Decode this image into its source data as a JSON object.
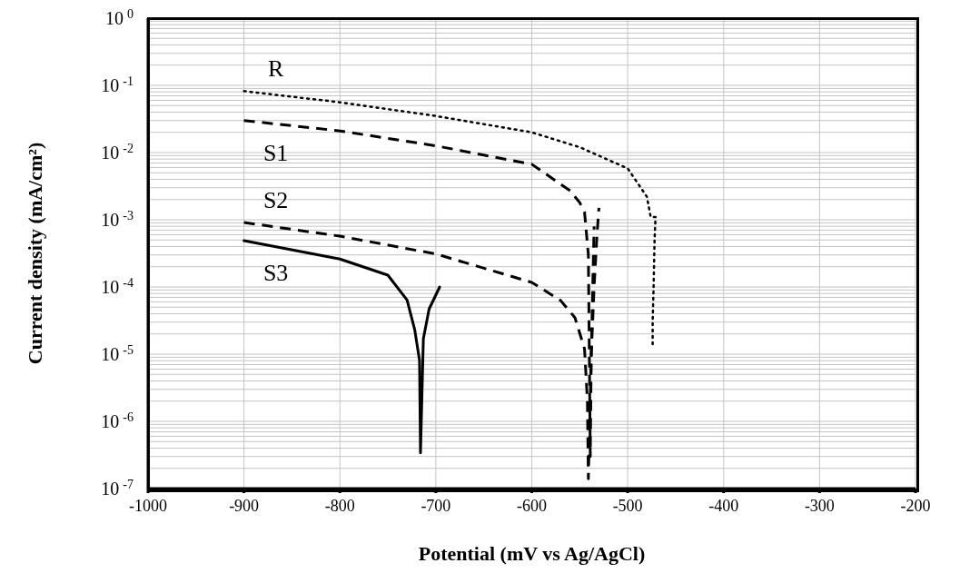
{
  "chart_data": {
    "type": "line",
    "xlabel": "Potential  (mV vs Ag/AgCl)",
    "ylabel": "Current density (mA/cm²)",
    "xlim": [
      -1000,
      -200
    ],
    "xticks": [
      -1000,
      -900,
      -800,
      -700,
      -600,
      -500,
      -400,
      -300,
      -200
    ],
    "ylim": [
      1e-07,
      1
    ],
    "log": "y",
    "grid": true,
    "legend": false,
    "marker": "none",
    "yticks": [
      {
        "value": 1e-07,
        "label": "10$^{-7}$"
      },
      {
        "value": 2e-07,
        "label": null
      },
      {
        "value": 3e-07,
        "label": null
      },
      {
        "value": 4e-07,
        "label": null
      },
      {
        "value": 5e-07,
        "label": null
      },
      {
        "value": 6e-07,
        "label": null
      },
      {
        "value": 7e-07,
        "label": null
      },
      {
        "value": 8e-07,
        "label": null
      },
      {
        "value": 9e-07,
        "label": null
      },
      {
        "value": 1e-06,
        "label": "10$^{-6}$"
      },
      {
        "value": 2e-06,
        "label": null
      },
      {
        "value": 3e-06,
        "label": null
      },
      {
        "value": 4e-06,
        "label": null
      },
      {
        "value": 5e-06,
        "label": null
      },
      {
        "value": 6e-06,
        "label": null
      },
      {
        "value": 7e-06,
        "label": null
      },
      {
        "value": 8e-06,
        "label": null
      },
      {
        "value": 9e-06,
        "label": null
      },
      {
        "value": 1e-05,
        "label": "10$^{-5}$"
      },
      {
        "value": 2e-05,
        "label": null
      },
      {
        "value": 3e-05,
        "label": null
      },
      {
        "value": 4e-05,
        "label": null
      },
      {
        "value": 5e-05,
        "label": null
      },
      {
        "value": 6e-05,
        "label": null
      },
      {
        "value": 7e-05,
        "label": null
      },
      {
        "value": 8e-05,
        "label": null
      },
      {
        "value": 9e-05,
        "label": null
      },
      {
        "value": 0.0001,
        "label": "10$^{-4}$"
      },
      {
        "value": 0.0002,
        "label": null
      },
      {
        "value": 0.0003,
        "label": null
      },
      {
        "value": 0.0004,
        "label": null
      },
      {
        "value": 0.0005,
        "label": null
      },
      {
        "value": 0.0006,
        "label": null
      },
      {
        "value": 0.0007,
        "label": null
      },
      {
        "value": 0.0008,
        "label": null
      },
      {
        "value": 0.0009,
        "label": null
      },
      {
        "value": 0.001,
        "label": "10$^{-3}$"
      },
      {
        "value": 0.002,
        "label": null
      },
      {
        "value": 0.003,
        "label": null
      },
      {
        "value": 0.004,
        "label": null
      },
      {
        "value": 0.005,
        "label": null
      },
      {
        "value": 0.006,
        "label": null
      },
      {
        "value": 0.007,
        "label": null
      },
      {
        "value": 0.008,
        "label": null
      },
      {
        "value": 0.009,
        "label": null
      },
      {
        "value": 0.01,
        "label": "10$^{-2}$"
      },
      {
        "value": 0.02,
        "label": null
      },
      {
        "value": 0.03,
        "label": null
      },
      {
        "value": 0.04,
        "label": null
      },
      {
        "value": 0.05,
        "label": null
      },
      {
        "value": 0.06,
        "label": null
      },
      {
        "value": 0.07,
        "label": null
      },
      {
        "value": 0.08,
        "label": null
      },
      {
        "value": 0.09,
        "label": null
      },
      {
        "value": 0.1,
        "label": "10$^{-1}$"
      },
      {
        "value": 0.2,
        "label": null
      },
      {
        "value": 0.3,
        "label": null
      },
      {
        "value": 0.4,
        "label": null
      },
      {
        "value": 0.5,
        "label": null
      },
      {
        "value": 0.6,
        "label": null
      },
      {
        "value": 0.7,
        "label": null
      },
      {
        "value": 0.8,
        "label": null
      },
      {
        "value": 0.9,
        "label": null
      },
      {
        "value": 1,
        "label": "10$^{0}$"
      }
    ],
    "series": [
      {
        "name": "R",
        "color": "#000000",
        "line_style": "dotted",
        "x": [
          -900,
          -800,
          -700,
          -600,
          -550,
          -500,
          -480,
          -476,
          -471,
          -472,
          -473,
          -474,
          -474
        ],
        "values": [
          0.082,
          0.056,
          0.035,
          0.02,
          0.012,
          0.0058,
          0.0022,
          0.0011,
          0.0011,
          0.0005,
          0.0001,
          3e-05,
          1.4e-05
        ]
      },
      {
        "name": "S1",
        "color": "#000000",
        "line_style": "dashed",
        "x": [
          -900,
          -800,
          -700,
          -600,
          -560,
          -550,
          -545,
          -541,
          -540,
          -539,
          -538,
          -535,
          -532,
          -530
        ],
        "values": [
          0.03,
          0.021,
          0.0126,
          0.0067,
          0.0027,
          0.0018,
          0.0013,
          0.0003,
          1e-05,
          3e-07,
          1e-05,
          0.0001,
          0.0006,
          0.0015
        ]
      },
      {
        "name": "S2",
        "color": "#000000",
        "line_style": "dashed",
        "x": [
          -900,
          -800,
          -700,
          -600,
          -570,
          -555,
          -545,
          -542,
          -541,
          -538,
          -536,
          -535
        ],
        "values": [
          0.00091,
          0.00057,
          0.00031,
          0.000117,
          6.3e-05,
          3.5e-05,
          1.2e-05,
          2e-06,
          1.4e-07,
          1e-05,
          0.0002,
          0.0008
        ]
      },
      {
        "name": "S3",
        "color": "#000000",
        "line_style": "solid",
        "x": [
          -900,
          -800,
          -750,
          -730,
          -722,
          -717,
          -716,
          -713,
          -707,
          -696
        ],
        "values": [
          0.00049,
          0.00026,
          0.00015,
          6.4e-05,
          2.3e-05,
          8.1e-06,
          3.4e-07,
          1.7e-05,
          4.7e-05,
          0.0001
        ]
      }
    ]
  }
}
